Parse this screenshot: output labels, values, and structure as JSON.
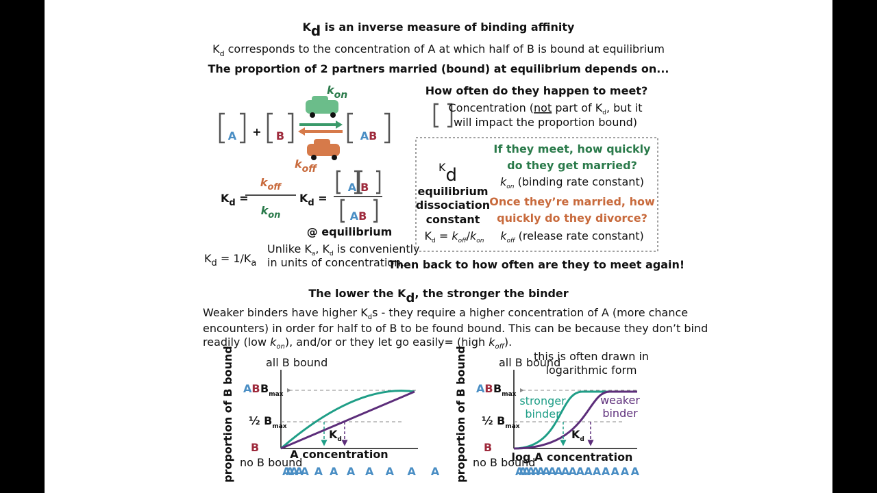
{
  "title": {
    "k": "K",
    "d": "d",
    "rest": " is an inverse measure of binding affinity"
  },
  "subtitle": {
    "k": "K",
    "d": "d",
    "rest": " corresponds to the concentration of A at which half of B is bound at equilibrium"
  },
  "lead": "The proportion of 2 partners married (bound) at equilibrium depends on...",
  "reaction": {
    "a": "A",
    "plus": "+",
    "b": "B",
    "ab_a": "A",
    "ab_b": "B",
    "kon": {
      "k": "k",
      "sub": "on"
    },
    "koff": {
      "k": "k",
      "sub": "off"
    }
  },
  "kd_rate": {
    "k": "K",
    "d": "d",
    "eq": " =",
    "num": {
      "k": "k",
      "sub": "off"
    },
    "den": {
      "k": "k",
      "sub": "on"
    }
  },
  "kd_conc": {
    "k": "K",
    "d": "d",
    "eq": " =",
    "num_a": "A",
    "num_b": "B",
    "den_a": "A",
    "den_b": "B",
    "note": "@ equilibrium"
  },
  "kd_ka": {
    "k": "K",
    "d": "d",
    "rest": " = 1/K",
    "a": "a"
  },
  "unlike": {
    "line1": [
      "Unlike K",
      "a",
      ", K",
      "d",
      " is conveniently"
    ],
    "line2": "in units of concentration."
  },
  "meet": {
    "question": "How often do they happen to meet?",
    "note1": [
      "Concentration (",
      "not",
      " part of K",
      "d",
      ", but it"
    ],
    "note2": "will impact the proportion bound)"
  },
  "box": {
    "k": "K",
    "d": "d",
    "labels": [
      "equilibrium",
      "dissociation",
      "constant"
    ],
    "formula": [
      "K",
      "d",
      " = ",
      "k",
      "off",
      "/",
      "k",
      "on"
    ],
    "married": [
      "If they meet, how quickly",
      "do they get married?"
    ],
    "kon": [
      "k",
      "on",
      " (binding rate constant)"
    ],
    "divorce": [
      "Once they’re married, how",
      "quickly do they divorce?"
    ],
    "koff": [
      "k",
      "off",
      " (release rate constant)"
    ]
  },
  "again": "Then back to how often are they to meet again!",
  "heading2": [
    "The lower the K",
    "d",
    ", the stronger the binder"
  ],
  "paragraph": [
    [
      "Weaker binders have higher K",
      "d",
      "s - they require a higher concentration of A (more chance"
    ],
    [
      "encounters) in order for half to of B to be found bound. This can be because they don’t bind"
    ],
    [
      "readily (low ",
      "k",
      "on",
      "), and/or or they let go easily= (high ",
      "k",
      "off",
      ")."
    ]
  ],
  "graph_left": {
    "y_label": "proportion of B bound",
    "top": "all B bound",
    "bottom": "no B bound",
    "ab": [
      "A",
      "B"
    ],
    "bmax": [
      "B",
      "max"
    ],
    "half": [
      "½ B",
      "max"
    ],
    "b": "B",
    "x_label": "A concentration",
    "kd": [
      "K",
      "d"
    ],
    "scale": [
      "A",
      "A",
      "A",
      "A",
      "A",
      "A",
      "A",
      "A",
      "A",
      "A",
      "A",
      "A"
    ]
  },
  "graph_right": {
    "y_label": "proportion of B bound",
    "top": "all B bound",
    "bottom": "no B bound",
    "note": [
      "this is often drawn in",
      "logarithmic form"
    ],
    "ab": [
      "A",
      "B"
    ],
    "bmax": [
      "B",
      "max"
    ],
    "half": [
      "½ B",
      "max"
    ],
    "b": "B",
    "x_label": "log A concentration",
    "kd": [
      "K",
      "d"
    ],
    "stronger": [
      "stronger",
      "binder"
    ],
    "weaker": [
      "weaker",
      "binder"
    ],
    "scale": [
      "A",
      "A",
      "A",
      "A",
      "A",
      "A",
      "A",
      "A",
      "A",
      "A",
      "A",
      "A",
      "A",
      "A",
      "A",
      "A",
      "A",
      "A"
    ]
  }
}
